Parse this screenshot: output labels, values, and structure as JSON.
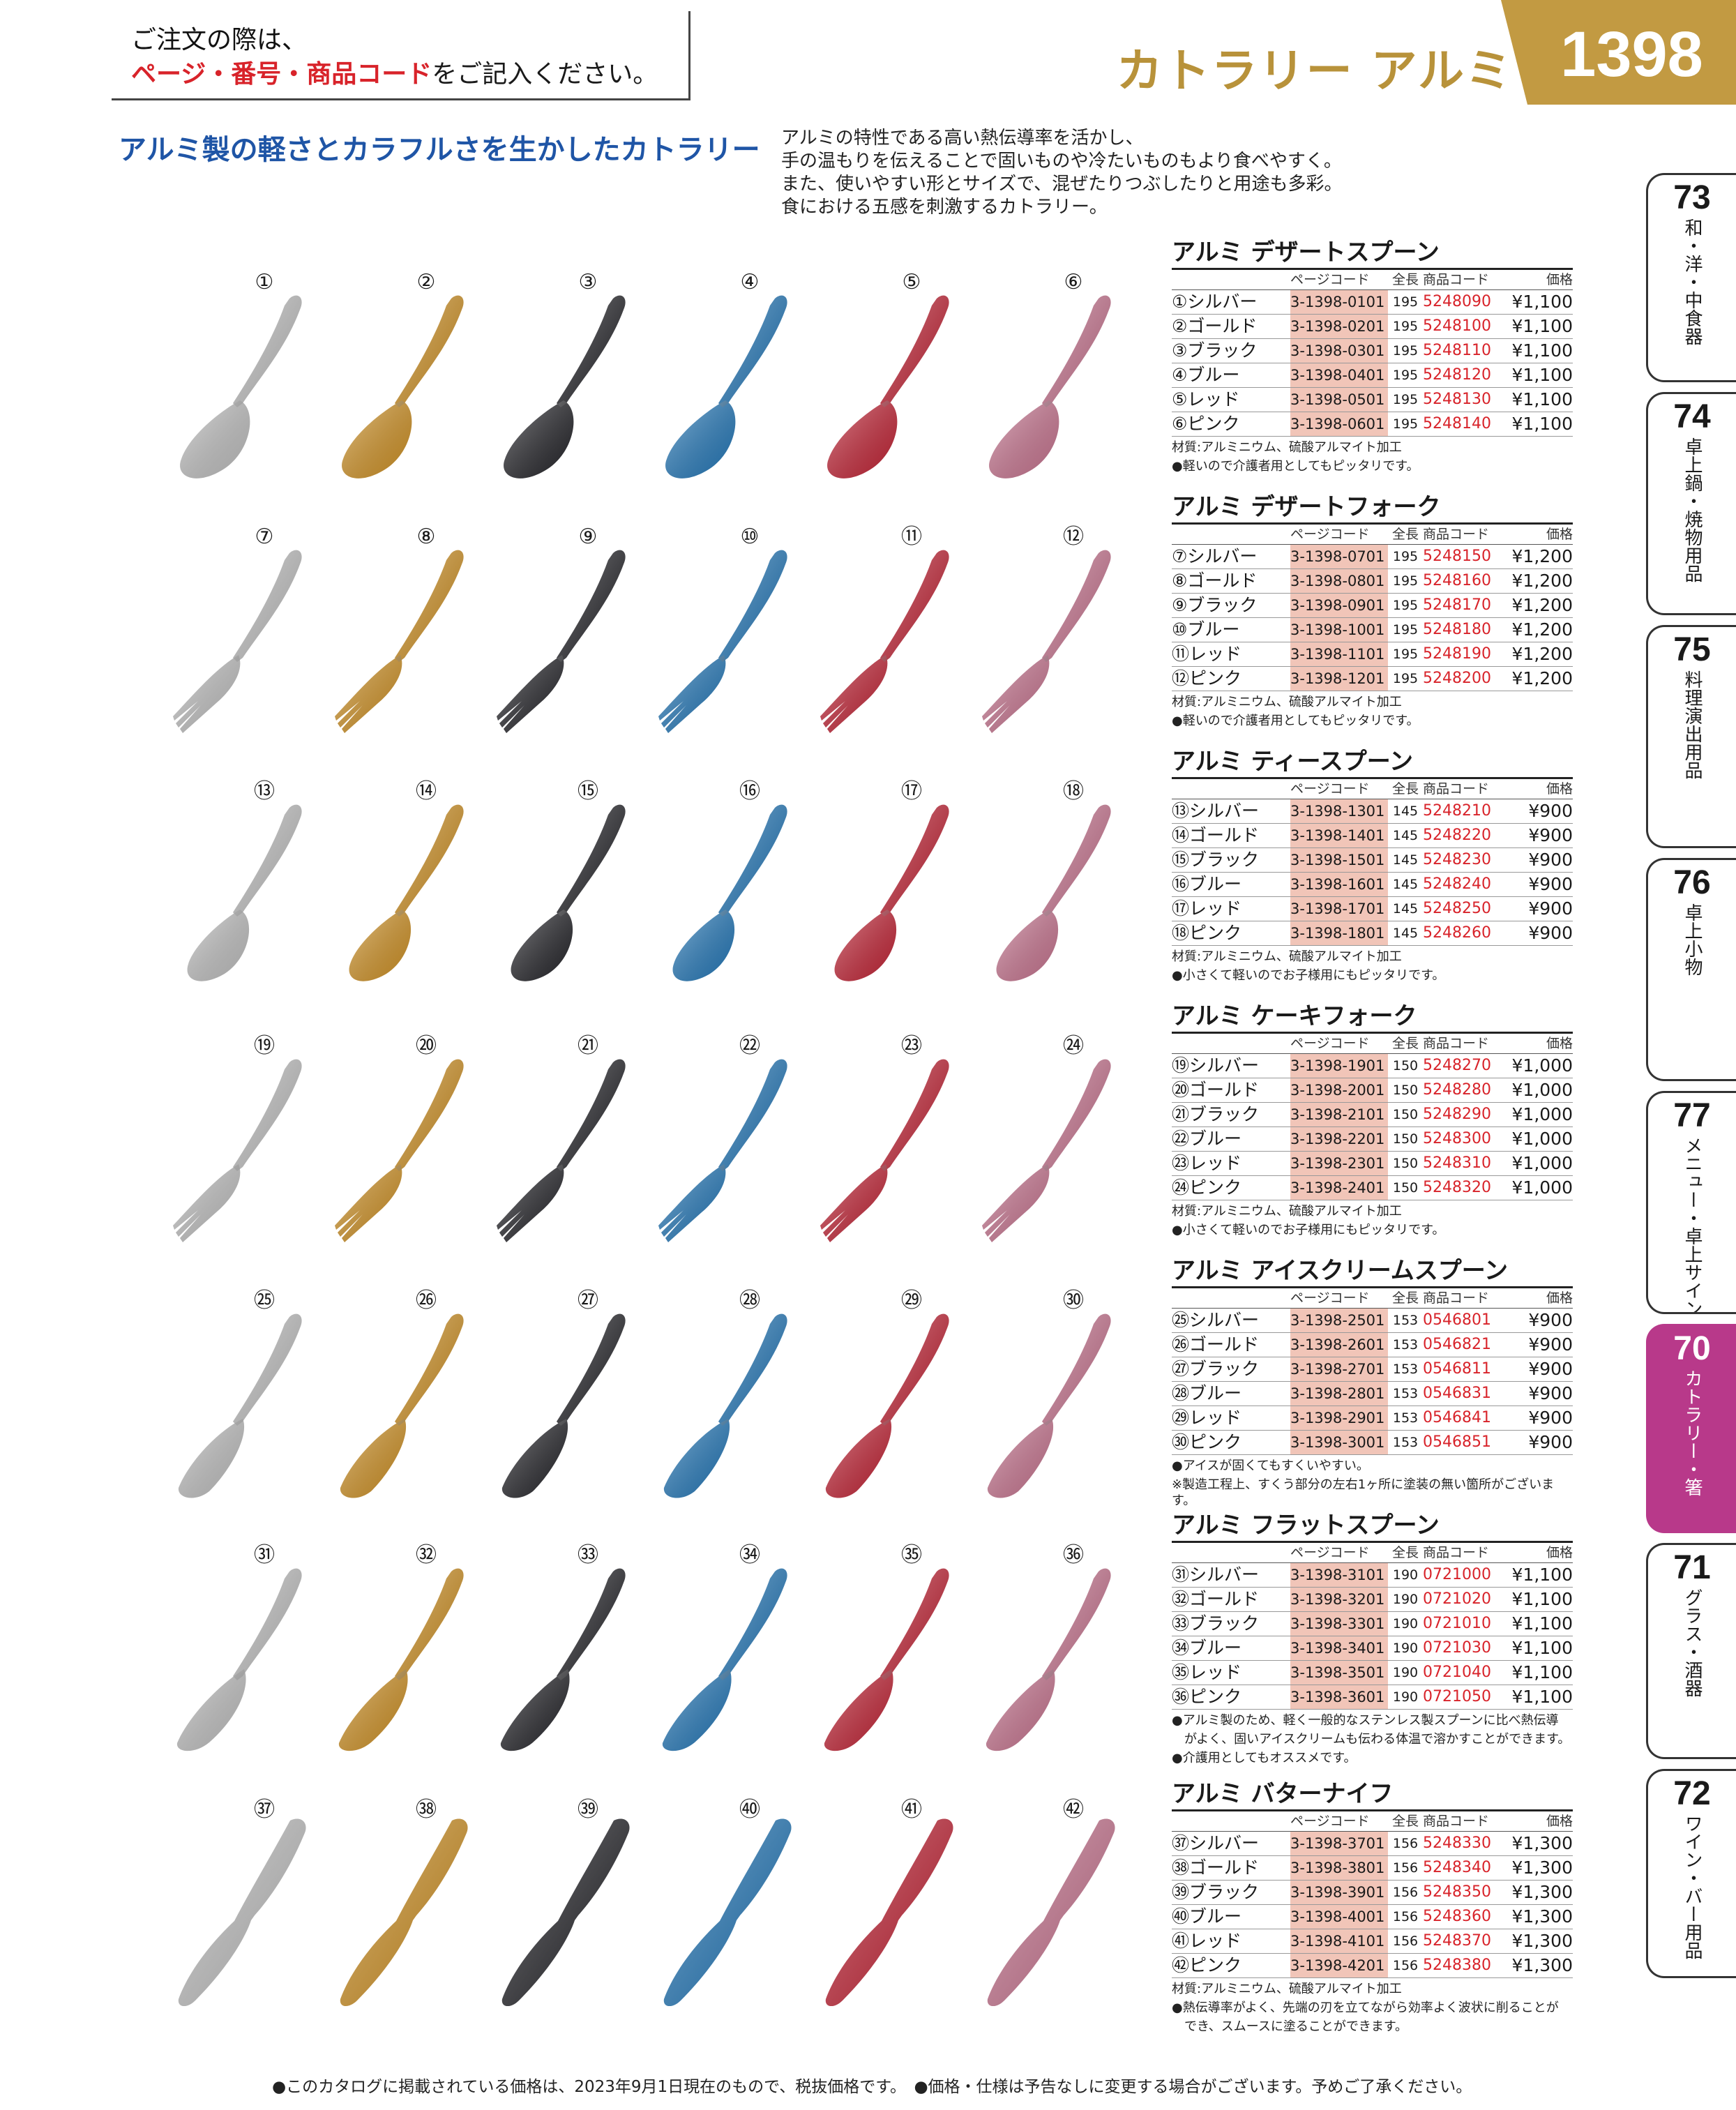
{
  "notice": {
    "line1": "ご注文の際は、",
    "line2_red": "ページ・番号・商品コード",
    "line2_rest": "をご記入ください。"
  },
  "section_title": "カトラリー アルミ",
  "page_number": "1398",
  "headline": "アルミ製の軽さとカラフルさを生かしたカトラリー",
  "intro": [
    "アルミの特性である高い熱伝導率を活かし、",
    "手の温もりを伝えることで固いものや冷たいものもより食べやすく。",
    "また、使いやすい形とサイズで、混ぜたりつぶしたりと用途も多彩。",
    "食における五感を刺激するカトラリー。"
  ],
  "side_tabs": [
    {
      "num": "73",
      "label": "和・洋・中食器"
    },
    {
      "num": "74",
      "label": "卓上鍋・焼物用品"
    },
    {
      "num": "75",
      "label": "料理演出用品"
    },
    {
      "num": "76",
      "label": "卓上小物"
    },
    {
      "num": "77",
      "label": "メニュー・卓上サイン"
    },
    {
      "num": "70",
      "label": "カトラリー・箸",
      "active": true
    },
    {
      "num": "71",
      "label": "グラス・酒器"
    },
    {
      "num": "72",
      "label": "ワイン・バー用品"
    }
  ],
  "colors": [
    "#c9c9c9",
    "#d99a2b",
    "#2b2b30",
    "#2a80c2",
    "#cc2a3c",
    "#d17c98"
  ],
  "item_types": [
    "spoon",
    "fork",
    "teaspoon",
    "cakefork",
    "icespoon",
    "flatspoon",
    "knife"
  ],
  "item_numbers": [
    [
      "①",
      "②",
      "③",
      "④",
      "⑤",
      "⑥"
    ],
    [
      "⑦",
      "⑧",
      "⑨",
      "⑩",
      "⑪",
      "⑫"
    ],
    [
      "⑬",
      "⑭",
      "⑮",
      "⑯",
      "⑰",
      "⑱"
    ],
    [
      "⑲",
      "⑳",
      "㉑",
      "㉒",
      "㉓",
      "㉔"
    ],
    [
      "㉕",
      "㉖",
      "㉗",
      "㉘",
      "㉙",
      "㉚"
    ],
    [
      "㉛",
      "㉜",
      "㉝",
      "㉞",
      "㉟",
      "㊱"
    ],
    [
      "㊲",
      "㊳",
      "㊴",
      "㊵",
      "㊶",
      "㊷"
    ]
  ],
  "table_header": {
    "page_code": "ページコード",
    "length": "全長",
    "product_code": "商品コード",
    "price": "価格"
  },
  "products": [
    {
      "title": "アルミ デザートスプーン",
      "rows": [
        [
          "①シルバー",
          "3-1398-0101",
          "195",
          "5248090",
          "¥1,100"
        ],
        [
          "②ゴールド",
          "3-1398-0201",
          "195",
          "5248100",
          "¥1,100"
        ],
        [
          "③ブラック",
          "3-1398-0301",
          "195",
          "5248110",
          "¥1,100"
        ],
        [
          "④ブルー",
          "3-1398-0401",
          "195",
          "5248120",
          "¥1,100"
        ],
        [
          "⑤レッド",
          "3-1398-0501",
          "195",
          "5248130",
          "¥1,100"
        ],
        [
          "⑥ピンク",
          "3-1398-0601",
          "195",
          "5248140",
          "¥1,100"
        ]
      ],
      "notes": [
        "材質:アルミニウム、硫酸アルマイト加工",
        "●軽いので介護者用としてもピッタリです。"
      ]
    },
    {
      "title": "アルミ デザートフォーク",
      "rows": [
        [
          "⑦シルバー",
          "3-1398-0701",
          "195",
          "5248150",
          "¥1,200"
        ],
        [
          "⑧ゴールド",
          "3-1398-0801",
          "195",
          "5248160",
          "¥1,200"
        ],
        [
          "⑨ブラック",
          "3-1398-0901",
          "195",
          "5248170",
          "¥1,200"
        ],
        [
          "⑩ブルー",
          "3-1398-1001",
          "195",
          "5248180",
          "¥1,200"
        ],
        [
          "⑪レッド",
          "3-1398-1101",
          "195",
          "5248190",
          "¥1,200"
        ],
        [
          "⑫ピンク",
          "3-1398-1201",
          "195",
          "5248200",
          "¥1,200"
        ]
      ],
      "notes": [
        "材質:アルミニウム、硫酸アルマイト加工",
        "●軽いので介護者用としてもピッタリです。"
      ]
    },
    {
      "title": "アルミ ティースプーン",
      "rows": [
        [
          "⑬シルバー",
          "3-1398-1301",
          "145",
          "5248210",
          "¥900"
        ],
        [
          "⑭ゴールド",
          "3-1398-1401",
          "145",
          "5248220",
          "¥900"
        ],
        [
          "⑮ブラック",
          "3-1398-1501",
          "145",
          "5248230",
          "¥900"
        ],
        [
          "⑯ブルー",
          "3-1398-1601",
          "145",
          "5248240",
          "¥900"
        ],
        [
          "⑰レッド",
          "3-1398-1701",
          "145",
          "5248250",
          "¥900"
        ],
        [
          "⑱ピンク",
          "3-1398-1801",
          "145",
          "5248260",
          "¥900"
        ]
      ],
      "notes": [
        "材質:アルミニウム、硫酸アルマイト加工",
        "●小さくて軽いのでお子様用にもピッタリです。"
      ]
    },
    {
      "title": "アルミ ケーキフォーク",
      "rows": [
        [
          "⑲シルバー",
          "3-1398-1901",
          "150",
          "5248270",
          "¥1,000"
        ],
        [
          "⑳ゴールド",
          "3-1398-2001",
          "150",
          "5248280",
          "¥1,000"
        ],
        [
          "㉑ブラック",
          "3-1398-2101",
          "150",
          "5248290",
          "¥1,000"
        ],
        [
          "㉒ブルー",
          "3-1398-2201",
          "150",
          "5248300",
          "¥1,000"
        ],
        [
          "㉓レッド",
          "3-1398-2301",
          "150",
          "5248310",
          "¥1,000"
        ],
        [
          "㉔ピンク",
          "3-1398-2401",
          "150",
          "5248320",
          "¥1,000"
        ]
      ],
      "notes": [
        "材質:アルミニウム、硫酸アルマイト加工",
        "●小さくて軽いのでお子様用にもピッタリです。"
      ]
    },
    {
      "title": "アルミ アイスクリームスプーン",
      "rows": [
        [
          "㉕シルバー",
          "3-1398-2501",
          "153",
          "0546801",
          "¥900"
        ],
        [
          "㉖ゴールド",
          "3-1398-2601",
          "153",
          "0546821",
          "¥900"
        ],
        [
          "㉗ブラック",
          "3-1398-2701",
          "153",
          "0546811",
          "¥900"
        ],
        [
          "㉘ブルー",
          "3-1398-2801",
          "153",
          "0546831",
          "¥900"
        ],
        [
          "㉙レッド",
          "3-1398-2901",
          "153",
          "0546841",
          "¥900"
        ],
        [
          "㉚ピンク",
          "3-1398-3001",
          "153",
          "0546851",
          "¥900"
        ]
      ],
      "notes": [
        "●アイスが固くてもすくいやすい。",
        "※製造工程上、すくう部分の左右1ヶ所に塗装の無い箇所がございます。"
      ]
    },
    {
      "title": "アルミ フラットスプーン",
      "rows": [
        [
          "㉛シルバー",
          "3-1398-3101",
          "190",
          "0721000",
          "¥1,100"
        ],
        [
          "㉜ゴールド",
          "3-1398-3201",
          "190",
          "0721020",
          "¥1,100"
        ],
        [
          "㉝ブラック",
          "3-1398-3301",
          "190",
          "0721010",
          "¥1,100"
        ],
        [
          "㉞ブルー",
          "3-1398-3401",
          "190",
          "0721030",
          "¥1,100"
        ],
        [
          "㉟レッド",
          "3-1398-3501",
          "190",
          "0721040",
          "¥1,100"
        ],
        [
          "㊱ピンク",
          "3-1398-3601",
          "190",
          "0721050",
          "¥1,100"
        ]
      ],
      "notes": [
        "●アルミ製のため、軽く一般的なステンレス製スプーンに比べ熱伝導",
        "　がよく、固いアイスクリームも伝わる体温で溶かすことができます。",
        "●介護用としてもオススメです。"
      ]
    },
    {
      "title": "アルミ バターナイフ",
      "rows": [
        [
          "㊲シルバー",
          "3-1398-3701",
          "156",
          "5248330",
          "¥1,300"
        ],
        [
          "㊳ゴールド",
          "3-1398-3801",
          "156",
          "5248340",
          "¥1,300"
        ],
        [
          "㊴ブラック",
          "3-1398-3901",
          "156",
          "5248350",
          "¥1,300"
        ],
        [
          "㊵ブルー",
          "3-1398-4001",
          "156",
          "5248360",
          "¥1,300"
        ],
        [
          "㊶レッド",
          "3-1398-4101",
          "156",
          "5248370",
          "¥1,300"
        ],
        [
          "㊷ピンク",
          "3-1398-4201",
          "156",
          "5248380",
          "¥1,300"
        ]
      ],
      "notes": [
        "材質:アルミニウム、硫酸アルマイト加工",
        "●熱伝導率がよく、先端の刃を立てながら効率よく波状に削ることが",
        "　でき、スムースに塗ることができます。"
      ]
    }
  ],
  "footer": "●このカタログに掲載されている価格は、2023年9月1日現在のもので、税抜価格です。　●価格・仕様は予告なしに変更する場合がございます。予めご了承ください。"
}
